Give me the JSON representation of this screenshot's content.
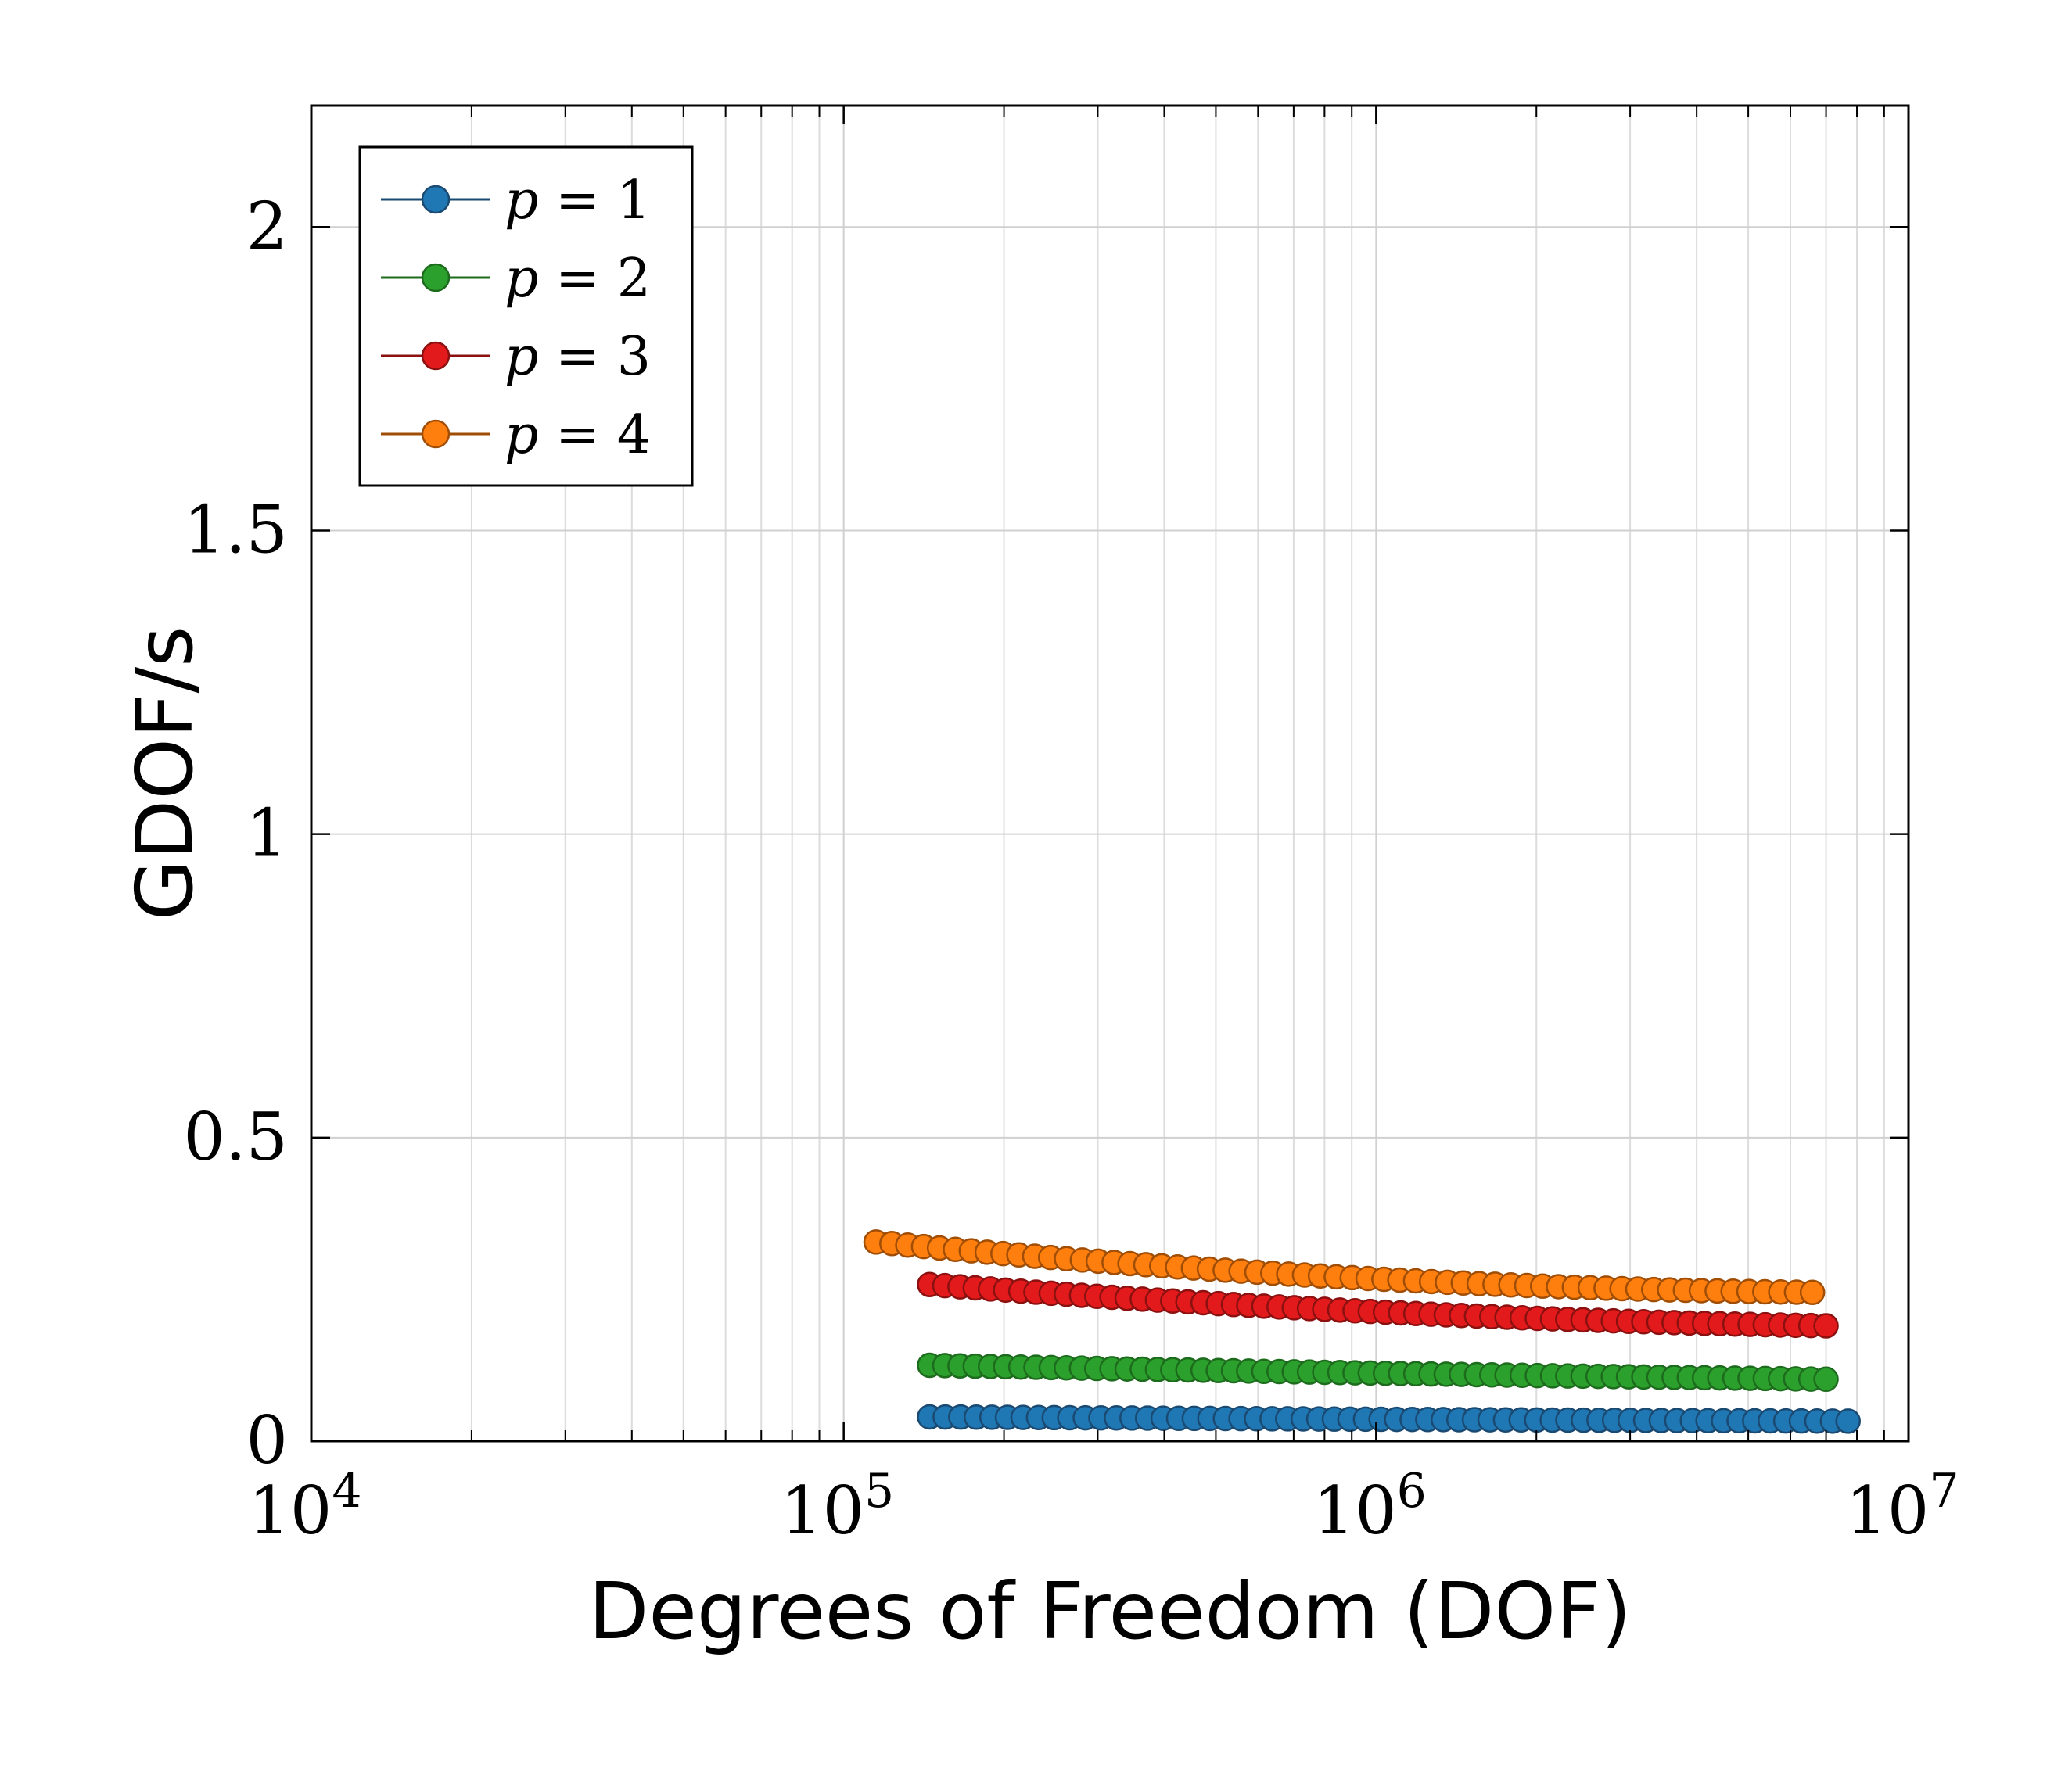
{
  "chart_data": {
    "type": "scatter",
    "xlabel": "Degrees of Freedom (DOF)",
    "ylabel": "GDOF/s",
    "xscale": "log",
    "xlim": [
      10000,
      10000000
    ],
    "ylim": [
      0,
      2.2
    ],
    "grid": true,
    "legend_position": "top-left",
    "x_ticks": [
      {
        "value": 10000,
        "base": "10",
        "exp": "4"
      },
      {
        "value": 100000,
        "base": "10",
        "exp": "5"
      },
      {
        "value": 1000000,
        "base": "10",
        "exp": "6"
      },
      {
        "value": 10000000,
        "base": "10",
        "exp": "7"
      }
    ],
    "y_ticks": [
      {
        "value": 0,
        "label": "0"
      },
      {
        "value": 0.5,
        "label": "0.5"
      },
      {
        "value": 1,
        "label": "1"
      },
      {
        "value": 1.5,
        "label": "1.5"
      },
      {
        "value": 2,
        "label": "2"
      }
    ],
    "series": [
      {
        "name": "p = 1",
        "var": "p",
        "eq": " = 1",
        "color": "#1f77b4",
        "line": "#1a4a72",
        "x_start": 145000,
        "x_end": 7700000,
        "y_start": 0.04,
        "y_end": 0.033,
        "y_mid": 0.036,
        "count": 60
      },
      {
        "name": "p = 2",
        "var": "p",
        "eq": " = 2",
        "color": "#2ca02c",
        "line": "#1d6b1d",
        "x_start": 145000,
        "x_end": 7000000,
        "y_start": 0.125,
        "y_end": 0.102,
        "y_mid": 0.112,
        "count": 60
      },
      {
        "name": "p = 3",
        "var": "p",
        "eq": " = 3",
        "color": "#e31a1c",
        "line": "#8b1010",
        "x_start": 145000,
        "x_end": 7000000,
        "y_start": 0.258,
        "y_end": 0.19,
        "y_mid": 0.213,
        "count": 60
      },
      {
        "name": "p = 4",
        "var": "p",
        "eq": " = 4",
        "color": "#ff7f0e",
        "line": "#a04d05",
        "x_start": 115000,
        "x_end": 6600000,
        "y_start": 0.328,
        "y_end": 0.245,
        "y_mid": 0.27,
        "count": 60
      }
    ]
  }
}
